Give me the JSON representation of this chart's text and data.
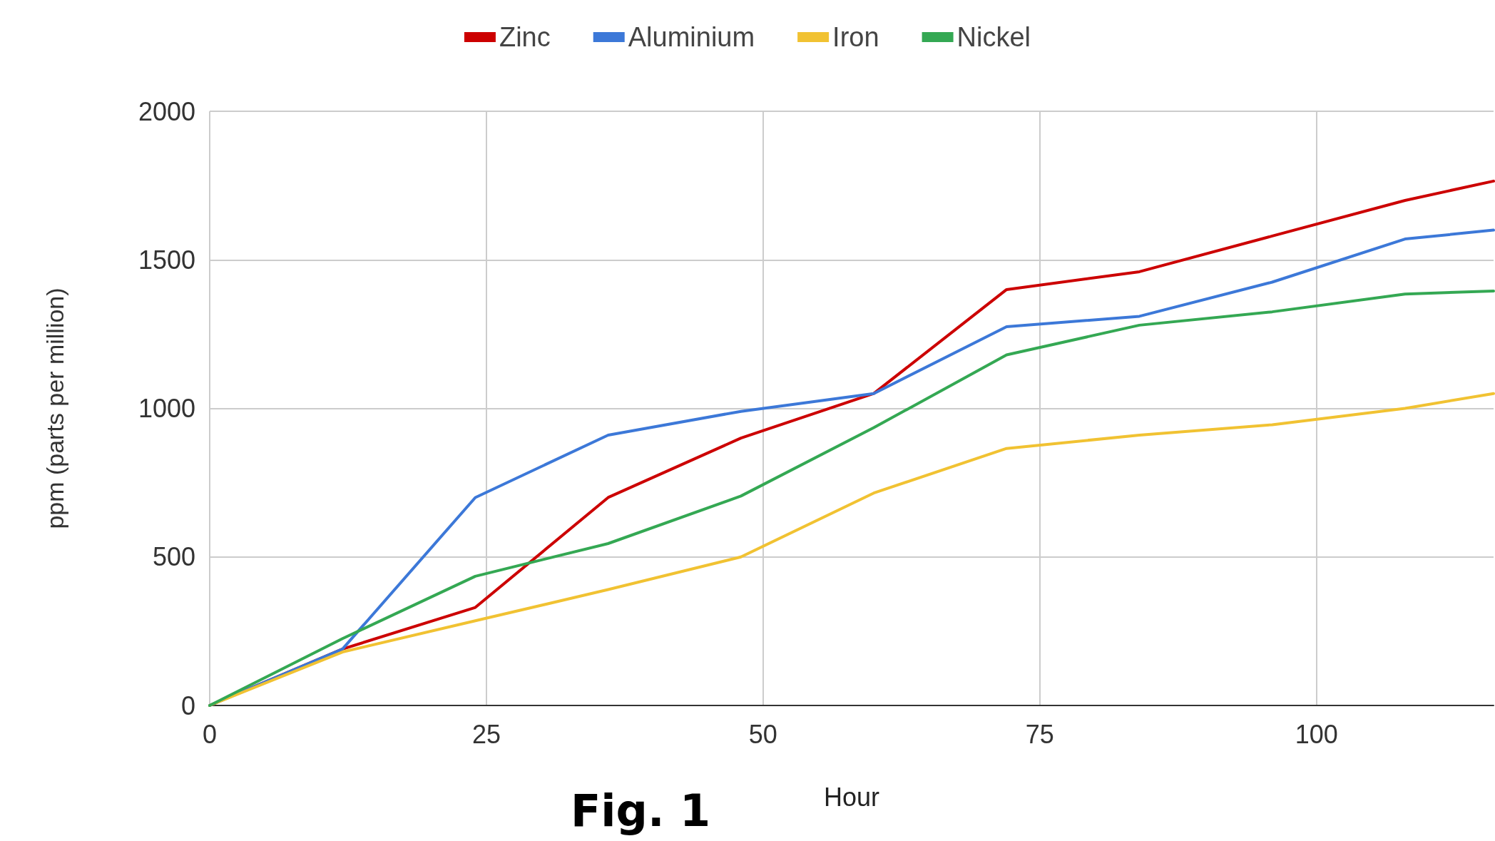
{
  "chart_data": {
    "type": "line",
    "xlabel": "Hour",
    "ylabel": "ppm (parts per million)",
    "annotations": [
      "Fig. 1"
    ],
    "series": [
      {
        "name": "Zinc",
        "color": "#cc0000",
        "x": [
          0,
          12,
          24,
          36,
          48,
          60,
          72,
          84,
          96,
          108,
          116
        ],
        "values": [
          0,
          190,
          330,
          700,
          900,
          1050,
          1400,
          1460,
          1580,
          1700,
          1765
        ]
      },
      {
        "name": "Aluminium",
        "color": "#3c78d8",
        "x": [
          0,
          12,
          24,
          36,
          48,
          60,
          72,
          84,
          96,
          108,
          116
        ],
        "values": [
          0,
          190,
          700,
          910,
          990,
          1050,
          1275,
          1310,
          1425,
          1570,
          1600
        ]
      },
      {
        "name": "Iron",
        "color": "#f1c232",
        "x": [
          0,
          12,
          24,
          36,
          48,
          60,
          72,
          84,
          96,
          108,
          116
        ],
        "values": [
          0,
          180,
          285,
          390,
          500,
          715,
          865,
          910,
          945,
          1000,
          1050
        ]
      },
      {
        "name": "Nickel",
        "color": "#34a853",
        "x": [
          0,
          12,
          24,
          36,
          48,
          60,
          72,
          84,
          96,
          108,
          116
        ],
        "values": [
          0,
          225,
          435,
          545,
          705,
          935,
          1180,
          1280,
          1325,
          1385,
          1395
        ]
      }
    ],
    "xlim": [
      0,
      116
    ],
    "xticks": [
      0,
      25,
      50,
      75,
      100
    ],
    "ylim": [
      0,
      2000
    ],
    "yticks": [
      0,
      500,
      1000,
      1500,
      2000
    ],
    "grid": true,
    "legend": "top",
    "marker": "none",
    "line_style": "solid"
  }
}
